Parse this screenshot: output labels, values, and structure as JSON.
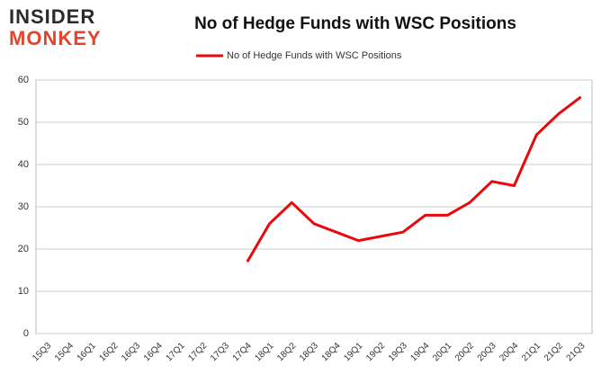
{
  "logo": {
    "line1": "INSIDER",
    "line2": "MONKEY"
  },
  "chart_data": {
    "type": "line",
    "title": "No of Hedge Funds with WSC Positions",
    "categories": [
      "15Q3",
      "15Q4",
      "16Q1",
      "16Q2",
      "16Q3",
      "16Q4",
      "17Q1",
      "17Q2",
      "17Q3",
      "17Q4",
      "18Q1",
      "18Q2",
      "18Q3",
      "18Q4",
      "19Q1",
      "19Q2",
      "19Q3",
      "19Q4",
      "20Q1",
      "20Q2",
      "20Q3",
      "20Q4",
      "21Q1",
      "21Q2",
      "21Q3"
    ],
    "series": [
      {
        "name": "No of Hedge Funds with WSC Positions",
        "color": "#e8090d",
        "values": [
          null,
          null,
          null,
          null,
          null,
          null,
          null,
          null,
          null,
          17,
          26,
          31,
          26,
          24,
          22,
          23,
          24,
          28,
          28,
          31,
          36,
          35,
          47,
          52,
          56
        ]
      }
    ],
    "ylim": [
      0,
      60
    ],
    "yticks": [
      0,
      10,
      20,
      30,
      40,
      50,
      60
    ],
    "grid": true,
    "legend": "top"
  }
}
